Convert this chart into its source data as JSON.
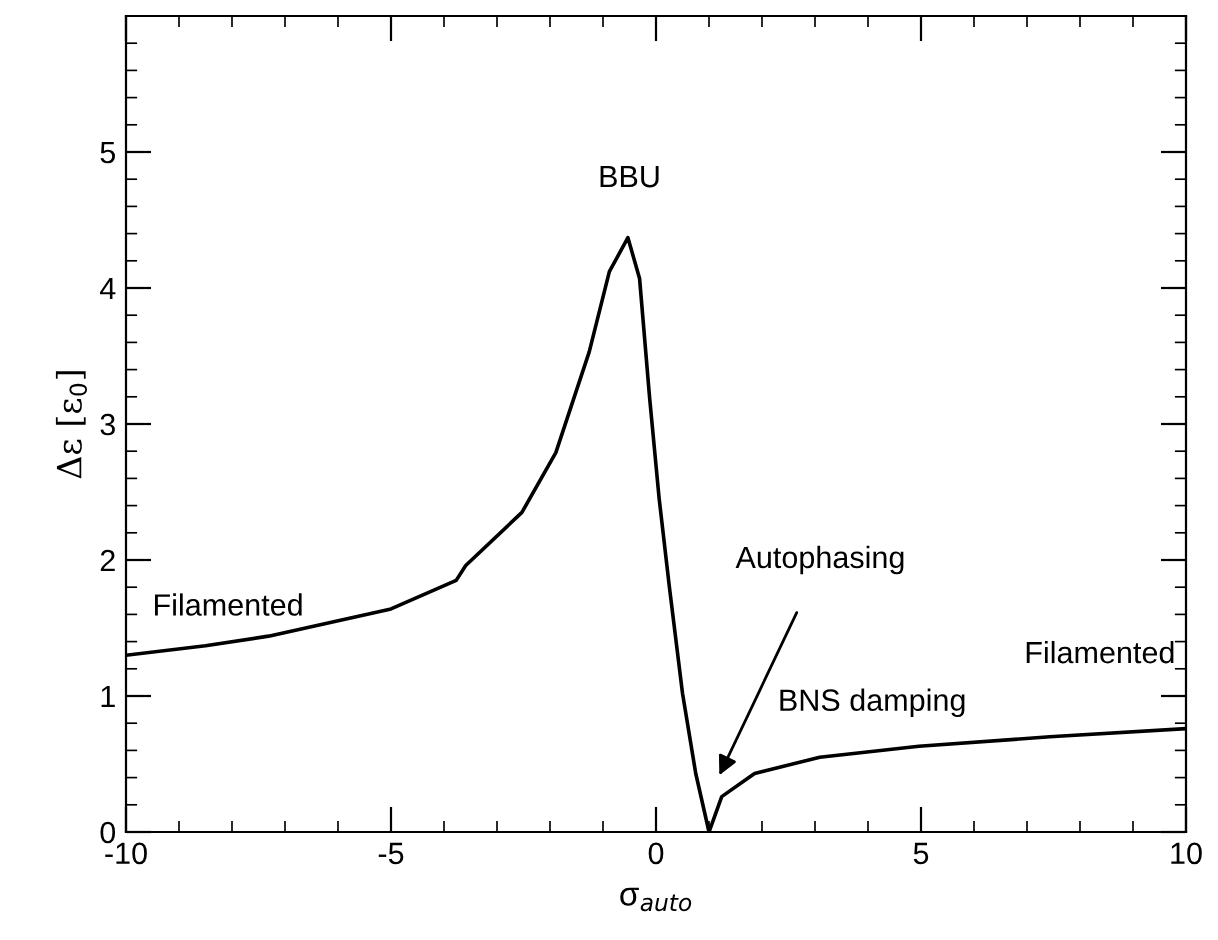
{
  "chart_data": {
    "type": "line",
    "xlabel": "σ$_{auto}$",
    "ylabel": "Δε [ε$_{0}$]",
    "x": [
      -10,
      -8.5,
      -7.31,
      -5,
      -3.77,
      -3.59,
      -2.53,
      -1.89,
      -1.26,
      -0.88,
      -0.53,
      -0.31,
      -0.12,
      0.06,
      0.25,
      0.5,
      0.75,
      1.0,
      1.12,
      1.24,
      1.86,
      3.09,
      4.96,
      7.43,
      10
    ],
    "series": [
      {
        "color": "#000000",
        "values": [
          1.3,
          1.37,
          1.44,
          1.64,
          1.85,
          1.96,
          2.35,
          2.79,
          3.53,
          4.12,
          4.37,
          4.07,
          3.19,
          2.45,
          1.81,
          1.02,
          0.43,
          0.0,
          0.13,
          0.26,
          0.43,
          0.55,
          0.63,
          0.7,
          0.76
        ]
      }
    ],
    "xlim": [
      -10,
      10
    ],
    "ylim": [
      0,
      6
    ],
    "xticks": [
      -10,
      -5,
      0,
      5,
      10
    ],
    "yticks": [
      0,
      1,
      2,
      3,
      4,
      5
    ],
    "annotations": [
      "BBU",
      "Filamented",
      "Autophasing",
      "BNS damping",
      "Filamented"
    ],
    "grid": false,
    "legend": false,
    "marker": "none",
    "line_style": "solid"
  }
}
